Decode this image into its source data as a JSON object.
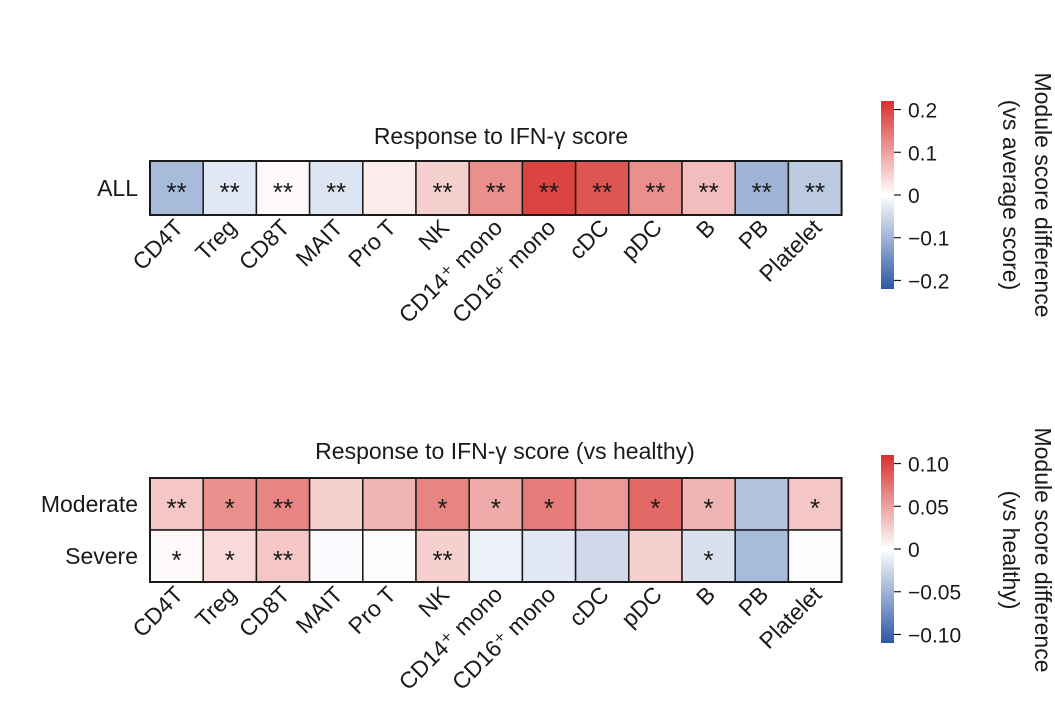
{
  "chart_data": [
    {
      "type": "heatmap",
      "title": "Response to IFN-γ score",
      "columns": [
        "CD4T",
        "Treg",
        "CD8T",
        "MAIT",
        "Pro T",
        "NK",
        "CD14⁺ mono",
        "CD16⁺ mono",
        "cDC",
        "pDC",
        "B",
        "PB",
        "Platelet"
      ],
      "rows": [
        "ALL"
      ],
      "values": [
        [
          -0.09,
          -0.03,
          0.005,
          -0.035,
          0.02,
          0.05,
          0.12,
          0.2,
          0.18,
          0.12,
          0.07,
          -0.1,
          -0.07
        ]
      ],
      "annotations": [
        [
          "**",
          "**",
          "**",
          "**",
          "",
          "**",
          "**",
          "**",
          "**",
          "**",
          "**",
          "**",
          "**"
        ]
      ],
      "colorbar": {
        "label_line1": "Module score difference",
        "label_line2": "(vs average score)",
        "range": [
          -0.22,
          0.22
        ],
        "ticks": [
          0.2,
          0.1,
          0,
          -0.1,
          -0.2
        ],
        "tick_labels": [
          "0.2",
          "0.1",
          "0",
          "−0.1",
          "−0.2"
        ]
      }
    },
    {
      "type": "heatmap",
      "title": "Response to IFN-γ score (vs healthy)",
      "columns": [
        "CD4T",
        "Treg",
        "CD8T",
        "MAIT",
        "Pro T",
        "NK",
        "CD14⁺ mono",
        "CD16⁺ mono",
        "cDC",
        "pDC",
        "B",
        "PB",
        "Platelet"
      ],
      "rows": [
        "Moderate",
        "Severe"
      ],
      "values": [
        [
          0.03,
          0.06,
          0.065,
          0.025,
          0.04,
          0.065,
          0.045,
          0.07,
          0.055,
          0.08,
          0.04,
          -0.04,
          0.03
        ],
        [
          0.003,
          0.02,
          0.03,
          -0.003,
          0.002,
          0.025,
          -0.01,
          -0.015,
          -0.025,
          0.025,
          -0.02,
          -0.045,
          -0.002
        ]
      ],
      "annotations": [
        [
          "**",
          "*",
          "**",
          "",
          "",
          "*",
          "*",
          "*",
          "",
          "*",
          "*",
          "",
          "*"
        ],
        [
          "*",
          "*",
          "**",
          "",
          "",
          "**",
          "",
          "",
          "",
          "",
          "*",
          "",
          ""
        ]
      ],
      "colorbar": {
        "label_line1": "Module score difference",
        "label_line2": "(vs healthy)",
        "range": [
          -0.11,
          0.11
        ],
        "ticks": [
          0.1,
          0.05,
          0,
          -0.05,
          -0.1
        ],
        "tick_labels": [
          "0.10",
          "0.05",
          "0",
          "−0.05",
          "−0.10"
        ]
      }
    }
  ],
  "colors": {
    "high": "#d7312d",
    "mid": "#ffffff",
    "low": "#2c58a4",
    "border": "#1a1a1a"
  }
}
